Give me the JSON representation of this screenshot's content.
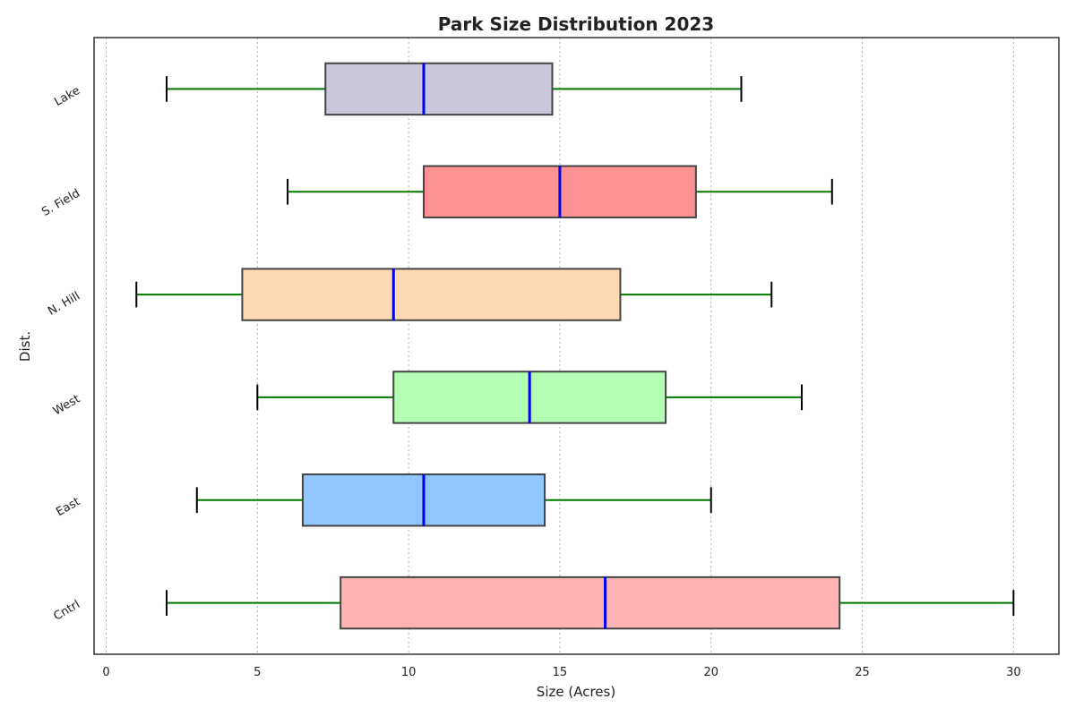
{
  "chart_data": {
    "type": "boxplot",
    "orientation": "horizontal",
    "title": "Park Size Distribution 2023",
    "xlabel": "Size (Acres)",
    "ylabel": "Dist.",
    "xlim": [
      -0.4,
      31.5
    ],
    "xticks": [
      0,
      5,
      10,
      15,
      20,
      25,
      30
    ],
    "grid": "vertical dotted",
    "categories": [
      "Cntrl",
      "East",
      "West",
      "N. Hill",
      "S. Field",
      "Lake"
    ],
    "boxes": [
      {
        "category": "Cntrl",
        "min": 2,
        "q1": 7.75,
        "median": 16.5,
        "q3": 24.25,
        "max": 30,
        "color": "#ffb3b3"
      },
      {
        "category": "East",
        "min": 3,
        "q1": 6.5,
        "median": 10.5,
        "q3": 14.5,
        "max": 20,
        "color": "#91c6fe"
      },
      {
        "category": "West",
        "min": 5,
        "q1": 9.5,
        "median": 14,
        "q3": 18.5,
        "max": 23,
        "color": "#b3feb3"
      },
      {
        "category": "N. Hill",
        "min": 1,
        "q1": 4.5,
        "median": 9.5,
        "q3": 17,
        "max": 22,
        "color": "#fed9b3"
      },
      {
        "category": "S. Field",
        "min": 6,
        "q1": 10.5,
        "median": 15,
        "q3": 19.5,
        "max": 24,
        "color": "#fe9191"
      },
      {
        "category": "Lake",
        "min": 2,
        "q1": 7.25,
        "median": 10.5,
        "q3": 14.75,
        "max": 21,
        "color": "#c8c8da"
      }
    ],
    "style": {
      "whisker_color": "#007700",
      "median_color": "#0000ee",
      "cap_color": "#000000",
      "box_edge_color": "#444444",
      "grid_color": "#b0b0b0"
    }
  }
}
